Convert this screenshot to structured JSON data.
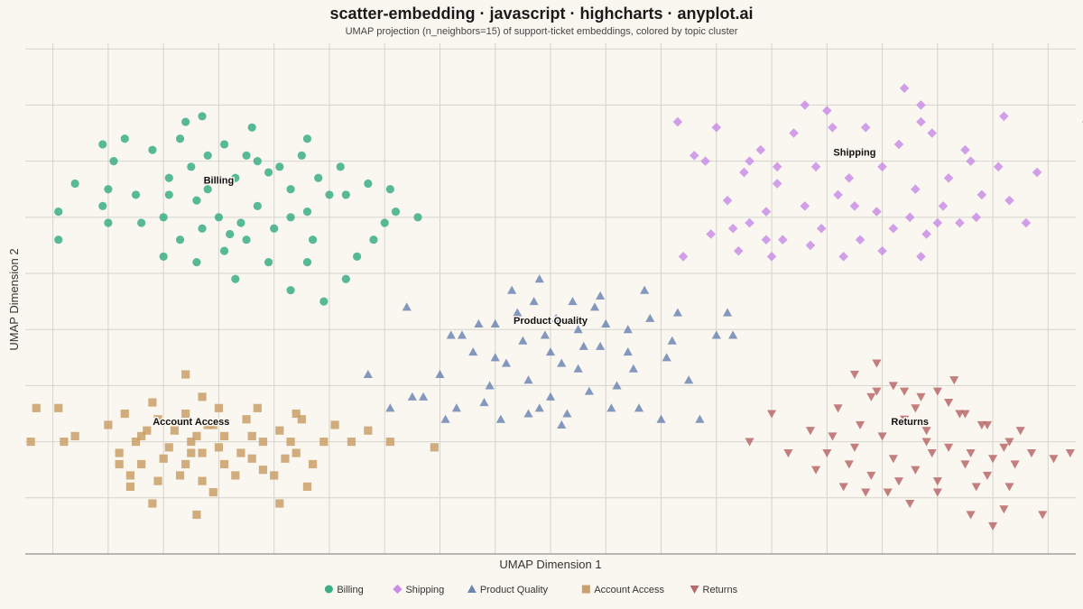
{
  "chart_data": {
    "type": "scatter",
    "title": "scatter-embedding · javascript · highcharts · anyplot.ai",
    "subtitle": "UMAP projection (n_neighbors=15) of support-ticket embeddings, colored by topic cluster",
    "xlabel": "UMAP Dimension 1",
    "ylabel": "UMAP Dimension 2",
    "xlim": [
      -0.5,
      18.5
    ],
    "ylim": [
      -1,
      8.1
    ],
    "grid": true,
    "legend_position": "bottom-center",
    "series": [
      {
        "name": "Billing",
        "color": "#3bae87",
        "marker": "circle",
        "points": [
          [
            2.3,
            6.4
          ],
          [
            3.1,
            6.3
          ],
          [
            3.5,
            6.1
          ],
          [
            3.9,
            5.8
          ],
          [
            2.5,
            5.9
          ],
          [
            2.8,
            5.5
          ],
          [
            3.3,
            5.7
          ],
          [
            1.8,
            6.2
          ],
          [
            4.1,
            5.9
          ],
          [
            4.5,
            6.1
          ],
          [
            4.8,
            5.7
          ],
          [
            5.2,
            5.9
          ],
          [
            5.0,
            5.4
          ],
          [
            4.3,
            5.5
          ],
          [
            3.7,
            5.2
          ],
          [
            3.0,
            5.0
          ],
          [
            2.6,
            5.3
          ],
          [
            2.1,
            5.7
          ],
          [
            1.5,
            5.4
          ],
          [
            1.1,
            6.0
          ],
          [
            0.4,
            5.6
          ],
          [
            1.0,
            5.5
          ],
          [
            2.0,
            5.0
          ],
          [
            2.7,
            4.8
          ],
          [
            3.4,
            4.9
          ],
          [
            4.0,
            4.8
          ],
          [
            4.6,
            5.1
          ],
          [
            5.3,
            5.4
          ],
          [
            5.7,
            5.6
          ],
          [
            6.2,
            5.1
          ],
          [
            5.8,
            4.6
          ],
          [
            4.7,
            4.6
          ],
          [
            3.9,
            4.2
          ],
          [
            3.1,
            4.4
          ],
          [
            2.3,
            4.6
          ],
          [
            1.6,
            4.9
          ],
          [
            0.9,
            5.2
          ],
          [
            0.1,
            5.1
          ],
          [
            2.0,
            4.3
          ],
          [
            3.3,
            3.9
          ],
          [
            4.6,
            4.2
          ],
          [
            5.3,
            3.9
          ],
          [
            6.0,
            4.9
          ],
          [
            6.6,
            5.0
          ],
          [
            1.3,
            6.4
          ],
          [
            2.4,
            6.7
          ],
          [
            3.6,
            6.6
          ],
          [
            4.6,
            6.4
          ],
          [
            0.9,
            6.3
          ],
          [
            3.7,
            6.0
          ],
          [
            2.8,
            6.1
          ],
          [
            4.3,
            5.0
          ],
          [
            3.5,
            4.6
          ],
          [
            2.1,
            5.4
          ],
          [
            5.5,
            4.3
          ],
          [
            6.1,
            5.5
          ],
          [
            4.3,
            3.7
          ],
          [
            0.1,
            4.6
          ],
          [
            1.0,
            4.9
          ],
          [
            2.6,
            4.2
          ],
          [
            2.7,
            6.8
          ],
          [
            3.2,
            4.7
          ],
          [
            4.9,
            3.5
          ]
        ]
      },
      {
        "name": "Shipping",
        "color": "#c98ee6",
        "marker": "diamond",
        "points": [
          [
            11.3,
            6.7
          ],
          [
            12.0,
            6.6
          ],
          [
            12.8,
            6.2
          ],
          [
            13.4,
            6.5
          ],
          [
            14.0,
            6.9
          ],
          [
            14.7,
            6.6
          ],
          [
            15.3,
            6.3
          ],
          [
            15.9,
            6.5
          ],
          [
            16.5,
            6.2
          ],
          [
            17.1,
            5.9
          ],
          [
            11.8,
            6.0
          ],
          [
            12.5,
            5.8
          ],
          [
            13.1,
            5.6
          ],
          [
            13.8,
            5.9
          ],
          [
            14.4,
            5.7
          ],
          [
            15.0,
            5.9
          ],
          [
            15.6,
            5.5
          ],
          [
            16.2,
            5.7
          ],
          [
            16.8,
            5.4
          ],
          [
            12.2,
            5.3
          ],
          [
            12.9,
            5.1
          ],
          [
            13.6,
            5.2
          ],
          [
            14.2,
            5.4
          ],
          [
            14.9,
            5.1
          ],
          [
            15.5,
            5.0
          ],
          [
            16.1,
            5.2
          ],
          [
            16.7,
            5.0
          ],
          [
            17.3,
            5.3
          ],
          [
            11.9,
            4.7
          ],
          [
            12.6,
            4.9
          ],
          [
            13.2,
            4.6
          ],
          [
            13.9,
            4.8
          ],
          [
            14.6,
            4.6
          ],
          [
            15.2,
            4.8
          ],
          [
            15.8,
            4.7
          ],
          [
            12.4,
            4.4
          ],
          [
            13.0,
            4.3
          ],
          [
            13.7,
            4.5
          ],
          [
            14.3,
            4.3
          ],
          [
            15.0,
            4.4
          ],
          [
            15.7,
            4.3
          ],
          [
            16.4,
            4.9
          ],
          [
            17.2,
            6.8
          ],
          [
            16.6,
            6.0
          ],
          [
            15.7,
            7.0
          ],
          [
            13.6,
            7.0
          ],
          [
            12.6,
            6.0
          ],
          [
            11.4,
            4.3
          ],
          [
            17.8,
            5.8
          ],
          [
            11.6,
            6.1
          ],
          [
            18.7,
            6.7
          ],
          [
            17.6,
            4.9
          ],
          [
            15.7,
            6.7
          ],
          [
            14.5,
            5.2
          ],
          [
            13.1,
            5.9
          ],
          [
            16.0,
            4.9
          ],
          [
            12.3,
            4.8
          ],
          [
            15.4,
            7.3
          ],
          [
            14.1,
            6.6
          ],
          [
            12.9,
            4.6
          ]
        ]
      },
      {
        "name": "Product Quality",
        "color": "#6f86b3",
        "marker": "triangle",
        "points": [
          [
            5.7,
            2.2
          ],
          [
            6.5,
            1.8
          ],
          [
            7.0,
            2.2
          ],
          [
            7.4,
            2.9
          ],
          [
            7.7,
            3.1
          ],
          [
            8.0,
            2.5
          ],
          [
            8.4,
            3.3
          ],
          [
            8.9,
            2.9
          ],
          [
            9.2,
            2.4
          ],
          [
            9.6,
            2.7
          ],
          [
            10.0,
            3.1
          ],
          [
            10.4,
            2.6
          ],
          [
            10.8,
            3.2
          ],
          [
            11.2,
            2.8
          ],
          [
            9.7,
            1.9
          ],
          [
            8.6,
            1.5
          ],
          [
            7.9,
            2.0
          ],
          [
            7.3,
            1.6
          ],
          [
            9.0,
            1.8
          ],
          [
            10.2,
            2.0
          ],
          [
            10.6,
            1.6
          ],
          [
            11.5,
            2.1
          ],
          [
            11.3,
            3.3
          ],
          [
            9.4,
            3.5
          ],
          [
            8.3,
            3.7
          ],
          [
            8.8,
            3.9
          ],
          [
            9.9,
            3.6
          ],
          [
            10.7,
            3.7
          ],
          [
            7.1,
            1.4
          ],
          [
            6.1,
            1.6
          ],
          [
            8.1,
            1.4
          ],
          [
            9.3,
            1.5
          ],
          [
            10.1,
            1.6
          ],
          [
            9.5,
            2.3
          ],
          [
            8.5,
            2.8
          ],
          [
            9.1,
            3.2
          ],
          [
            8.2,
            2.4
          ],
          [
            10.5,
            2.3
          ],
          [
            8.7,
            3.5
          ],
          [
            12.2,
            3.3
          ],
          [
            12.0,
            2.9
          ],
          [
            11.0,
            1.4
          ],
          [
            6.7,
            1.8
          ],
          [
            10.4,
            3.0
          ],
          [
            9.8,
            3.4
          ],
          [
            7.6,
            2.6
          ],
          [
            8.6,
            2.1
          ],
          [
            9.0,
            2.6
          ],
          [
            9.5,
            3.0
          ],
          [
            11.7,
            1.4
          ],
          [
            7.2,
            2.9
          ],
          [
            8.8,
            1.6
          ],
          [
            6.4,
            3.4
          ],
          [
            12.3,
            2.9
          ],
          [
            9.9,
            2.7
          ],
          [
            7.8,
            1.7
          ],
          [
            11.1,
            2.5
          ],
          [
            8.0,
            3.1
          ],
          [
            9.2,
            1.3
          ]
        ]
      },
      {
        "name": "Account Access",
        "color": "#c9a06a",
        "marker": "square",
        "points": [
          [
            0.1,
            1.6
          ],
          [
            0.4,
            1.1
          ],
          [
            0.2,
            1.0
          ],
          [
            1.0,
            1.3
          ],
          [
            1.3,
            1.5
          ],
          [
            1.6,
            1.1
          ],
          [
            1.9,
            1.4
          ],
          [
            2.2,
            1.2
          ],
          [
            2.5,
            1.0
          ],
          [
            2.8,
            1.3
          ],
          [
            3.1,
            1.1
          ],
          [
            3.5,
            1.4
          ],
          [
            3.8,
            1.0
          ],
          [
            4.1,
            1.2
          ],
          [
            4.5,
            1.4
          ],
          [
            4.9,
            1.0
          ],
          [
            1.2,
            0.8
          ],
          [
            1.6,
            0.6
          ],
          [
            2.0,
            0.7
          ],
          [
            2.4,
            0.6
          ],
          [
            2.7,
            0.8
          ],
          [
            3.1,
            0.6
          ],
          [
            3.4,
            0.8
          ],
          [
            3.8,
            0.5
          ],
          [
            4.2,
            0.7
          ],
          [
            1.4,
            0.4
          ],
          [
            1.9,
            0.3
          ],
          [
            2.3,
            0.4
          ],
          [
            2.7,
            0.3
          ],
          [
            3.3,
            0.4
          ],
          [
            4.0,
            0.4
          ],
          [
            4.4,
            0.8
          ],
          [
            1.5,
            1.0
          ],
          [
            2.1,
            0.9
          ],
          [
            2.6,
            1.1
          ],
          [
            3.0,
            0.9
          ],
          [
            3.6,
            1.1
          ],
          [
            4.3,
            1.0
          ],
          [
            1.8,
            1.7
          ],
          [
            2.4,
            1.5
          ],
          [
            3.0,
            1.6
          ],
          [
            3.7,
            1.6
          ],
          [
            4.4,
            1.5
          ],
          [
            5.1,
            1.3
          ],
          [
            5.4,
            1.0
          ],
          [
            5.7,
            1.2
          ],
          [
            6.1,
            1.0
          ],
          [
            6.9,
            0.9
          ],
          [
            -0.4,
            1.0
          ],
          [
            -0.3,
            1.6
          ],
          [
            2.4,
            2.2
          ],
          [
            2.7,
            1.8
          ],
          [
            1.4,
            0.2
          ],
          [
            2.9,
            0.1
          ],
          [
            1.8,
            -0.1
          ],
          [
            4.1,
            -0.1
          ],
          [
            2.6,
            -0.3
          ],
          [
            4.6,
            0.2
          ],
          [
            1.7,
            1.2
          ],
          [
            2.9,
            1.3
          ],
          [
            3.6,
            0.7
          ],
          [
            2.5,
            0.8
          ],
          [
            4.7,
            0.6
          ],
          [
            1.2,
            0.6
          ]
        ]
      },
      {
        "name": "Returns",
        "color": "#b86a6a",
        "marker": "triangle-down",
        "points": [
          [
            14.5,
            2.2
          ],
          [
            14.9,
            1.9
          ],
          [
            15.2,
            2.0
          ],
          [
            15.6,
            1.6
          ],
          [
            16.0,
            1.9
          ],
          [
            16.4,
            1.5
          ],
          [
            16.9,
            1.3
          ],
          [
            17.3,
            1.0
          ],
          [
            17.7,
            0.8
          ],
          [
            18.1,
            0.7
          ],
          [
            14.2,
            1.6
          ],
          [
            14.6,
            1.3
          ],
          [
            15.0,
            1.1
          ],
          [
            15.4,
            1.4
          ],
          [
            15.8,
            1.2
          ],
          [
            16.2,
            0.9
          ],
          [
            16.6,
            0.8
          ],
          [
            17.0,
            0.7
          ],
          [
            17.4,
            0.6
          ],
          [
            14.0,
            0.8
          ],
          [
            14.4,
            0.6
          ],
          [
            14.8,
            0.4
          ],
          [
            15.2,
            0.7
          ],
          [
            15.6,
            0.5
          ],
          [
            16.0,
            0.3
          ],
          [
            16.5,
            0.6
          ],
          [
            16.9,
            0.4
          ],
          [
            17.3,
            0.2
          ],
          [
            13.8,
            0.5
          ],
          [
            14.3,
            0.2
          ],
          [
            14.7,
            0.1
          ],
          [
            15.1,
            0.1
          ],
          [
            15.5,
            -0.1
          ],
          [
            16.0,
            0.1
          ],
          [
            16.6,
            -0.3
          ],
          [
            17.2,
            -0.2
          ],
          [
            17.0,
            -0.5
          ],
          [
            17.9,
            -0.3
          ],
          [
            13.0,
            1.5
          ],
          [
            12.6,
            1.0
          ],
          [
            13.3,
            0.8
          ],
          [
            13.7,
            1.2
          ],
          [
            15.7,
            1.8
          ],
          [
            14.9,
            2.4
          ],
          [
            16.8,
            1.3
          ],
          [
            15.3,
            0.3
          ],
          [
            14.1,
            1.1
          ],
          [
            15.9,
            0.8
          ],
          [
            14.5,
            0.9
          ],
          [
            18.4,
            0.8
          ],
          [
            18.8,
            0.9
          ],
          [
            16.2,
            1.7
          ],
          [
            17.5,
            1.2
          ],
          [
            15.8,
            1.0
          ],
          [
            16.7,
            0.2
          ],
          [
            14.8,
            1.8
          ],
          [
            16.5,
            1.5
          ],
          [
            17.2,
            0.9
          ],
          [
            15.4,
            1.9
          ],
          [
            16.3,
            2.1
          ]
        ]
      }
    ],
    "annotations": [
      {
        "text": "Billing",
        "x": 3.0,
        "y": 5.6
      },
      {
        "text": "Shipping",
        "x": 14.5,
        "y": 6.1
      },
      {
        "text": "Product Quality",
        "x": 9.0,
        "y": 3.1
      },
      {
        "text": "Account Access",
        "x": 2.5,
        "y": 1.3
      },
      {
        "text": "Returns",
        "x": 15.5,
        "y": 1.3
      }
    ]
  }
}
